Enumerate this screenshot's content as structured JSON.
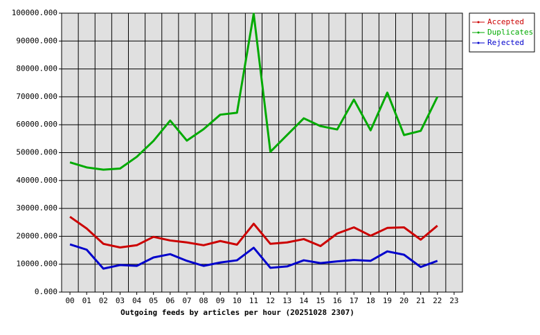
{
  "chart_data": {
    "type": "line",
    "x_label": "Outgoing feeds by articles per hour (20251028 2307)",
    "categories": [
      "00",
      "01",
      "02",
      "03",
      "04",
      "05",
      "06",
      "07",
      "08",
      "09",
      "10",
      "11",
      "12",
      "13",
      "14",
      "15",
      "16",
      "17",
      "18",
      "19",
      "20",
      "21",
      "22",
      "23"
    ],
    "series": [
      {
        "name": "Accepted",
        "color": "#cc0000",
        "values": [
          27000,
          22800,
          17300,
          16000,
          16800,
          19800,
          18500,
          17800,
          16800,
          18300,
          17000,
          24500,
          17300,
          17800,
          19000,
          16500,
          21000,
          23200,
          20200,
          23000,
          23200,
          18800,
          23800,
          null
        ]
      },
      {
        "name": "Duplicates",
        "color": "#00aa00",
        "values": [
          46500,
          44700,
          43900,
          44300,
          48500,
          54200,
          61500,
          54300,
          58400,
          63600,
          64300,
          99800,
          50300,
          56300,
          62300,
          59500,
          58300,
          69000,
          58000,
          71500,
          56300,
          57800,
          70000,
          null
        ]
      },
      {
        "name": "Rejected",
        "color": "#0000cc",
        "values": [
          17100,
          15200,
          8400,
          9700,
          9400,
          12400,
          13600,
          11200,
          9400,
          10600,
          11400,
          15900,
          8700,
          9200,
          11400,
          10400,
          11000,
          11500,
          11200,
          14600,
          13400,
          9000,
          11200,
          null
        ]
      }
    ],
    "ylim": [
      0,
      100000
    ],
    "yticks": [
      {
        "value": 0,
        "label": "0.000"
      },
      {
        "value": 10000,
        "label": "10000.000"
      },
      {
        "value": 20000,
        "label": "20000.000"
      },
      {
        "value": 30000,
        "label": "30000.000"
      },
      {
        "value": 40000,
        "label": "40000.000"
      },
      {
        "value": 50000,
        "label": "50000.000"
      },
      {
        "value": 60000,
        "label": "60000.000"
      },
      {
        "value": 70000,
        "label": "70000.000"
      },
      {
        "value": 80000,
        "label": "80000.000"
      },
      {
        "value": 90000,
        "label": "90000.000"
      },
      {
        "value": 100000,
        "label": "100000.000"
      }
    ],
    "grid": true,
    "legend": "top-right"
  }
}
